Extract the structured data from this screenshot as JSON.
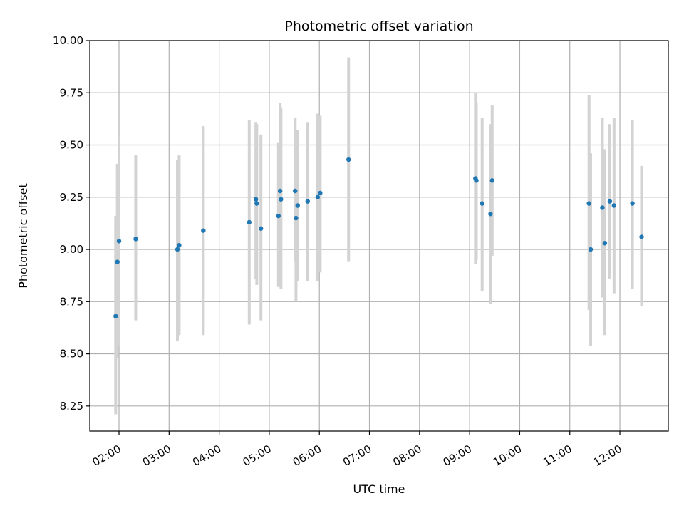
{
  "chart_data": {
    "type": "scatter",
    "title": "Photometric offset variation",
    "xlabel": "UTC time",
    "ylabel": "Photometric offset",
    "x_unit": "time of day (UTC)",
    "xlim": [
      "01:25",
      "12:58"
    ],
    "ylim": [
      8.13,
      10.0
    ],
    "x_ticks": [
      "02:00",
      "03:00",
      "04:00",
      "05:00",
      "06:00",
      "07:00",
      "08:00",
      "09:00",
      "10:00",
      "11:00",
      "12:00"
    ],
    "y_ticks": [
      "8.25",
      "8.50",
      "8.75",
      "9.00",
      "9.25",
      "9.50",
      "9.75",
      "10.00"
    ],
    "grid": true,
    "legend": "none",
    "colors": {
      "point": "#1f77b4",
      "errorbar": "#d3d3d3",
      "grid": "#b0b0b0"
    },
    "series": [
      {
        "points": [
          {
            "x": "01:56",
            "y": 8.68,
            "err_low": 8.21,
            "err_high": 9.16
          },
          {
            "x": "01:58",
            "y": 8.94,
            "err_low": 8.48,
            "err_high": 9.41
          },
          {
            "x": "02:00",
            "y": 9.04,
            "err_low": 8.54,
            "err_high": 9.54
          },
          {
            "x": "02:20",
            "y": 9.05,
            "err_low": 8.66,
            "err_high": 9.45
          },
          {
            "x": "03:10",
            "y": 9.0,
            "err_low": 8.56,
            "err_high": 9.43
          },
          {
            "x": "03:12",
            "y": 9.02,
            "err_low": 8.59,
            "err_high": 9.45
          },
          {
            "x": "03:41",
            "y": 9.09,
            "err_low": 8.59,
            "err_high": 9.59
          },
          {
            "x": "04:36",
            "y": 9.13,
            "err_low": 8.64,
            "err_high": 9.62
          },
          {
            "x": "04:44",
            "y": 9.24,
            "err_low": 8.86,
            "err_high": 9.61
          },
          {
            "x": "04:45",
            "y": 9.22,
            "err_low": 8.83,
            "err_high": 9.6
          },
          {
            "x": "04:50",
            "y": 9.1,
            "err_low": 8.66,
            "err_high": 9.55
          },
          {
            "x": "05:11",
            "y": 9.16,
            "err_low": 8.82,
            "err_high": 9.51
          },
          {
            "x": "05:13",
            "y": 9.28,
            "err_low": 8.87,
            "err_high": 9.7
          },
          {
            "x": "05:14",
            "y": 9.24,
            "err_low": 8.81,
            "err_high": 9.68
          },
          {
            "x": "05:31",
            "y": 9.28,
            "err_low": 8.94,
            "err_high": 9.63
          },
          {
            "x": "05:32",
            "y": 9.15,
            "err_low": 8.75,
            "err_high": 9.55
          },
          {
            "x": "05:34",
            "y": 9.21,
            "err_low": 8.85,
            "err_high": 9.57
          },
          {
            "x": "05:46",
            "y": 9.23,
            "err_low": 8.85,
            "err_high": 9.61
          },
          {
            "x": "05:58",
            "y": 9.25,
            "err_low": 8.85,
            "err_high": 9.65
          },
          {
            "x": "06:01",
            "y": 9.27,
            "err_low": 8.89,
            "err_high": 9.64
          },
          {
            "x": "06:35",
            "y": 9.43,
            "err_low": 8.94,
            "err_high": 9.92
          },
          {
            "x": "09:07",
            "y": 9.34,
            "err_low": 8.93,
            "err_high": 9.75
          },
          {
            "x": "09:08",
            "y": 9.33,
            "err_low": 8.95,
            "err_high": 9.7
          },
          {
            "x": "09:15",
            "y": 9.22,
            "err_low": 8.8,
            "err_high": 9.63
          },
          {
            "x": "09:25",
            "y": 9.17,
            "err_low": 8.74,
            "err_high": 9.6
          },
          {
            "x": "09:27",
            "y": 9.33,
            "err_low": 8.97,
            "err_high": 9.69
          },
          {
            "x": "11:23",
            "y": 9.22,
            "err_low": 8.71,
            "err_high": 9.74
          },
          {
            "x": "11:25",
            "y": 9.0,
            "err_low": 8.54,
            "err_high": 9.46
          },
          {
            "x": "11:39",
            "y": 9.2,
            "err_low": 8.77,
            "err_high": 9.63
          },
          {
            "x": "11:42",
            "y": 9.03,
            "err_low": 8.59,
            "err_high": 9.48
          },
          {
            "x": "11:48",
            "y": 9.23,
            "err_low": 8.86,
            "err_high": 9.6
          },
          {
            "x": "11:53",
            "y": 9.21,
            "err_low": 8.79,
            "err_high": 9.63
          },
          {
            "x": "12:15",
            "y": 9.22,
            "err_low": 8.81,
            "err_high": 9.62
          },
          {
            "x": "12:26",
            "y": 9.06,
            "err_low": 8.73,
            "err_high": 9.4
          }
        ]
      }
    ]
  }
}
